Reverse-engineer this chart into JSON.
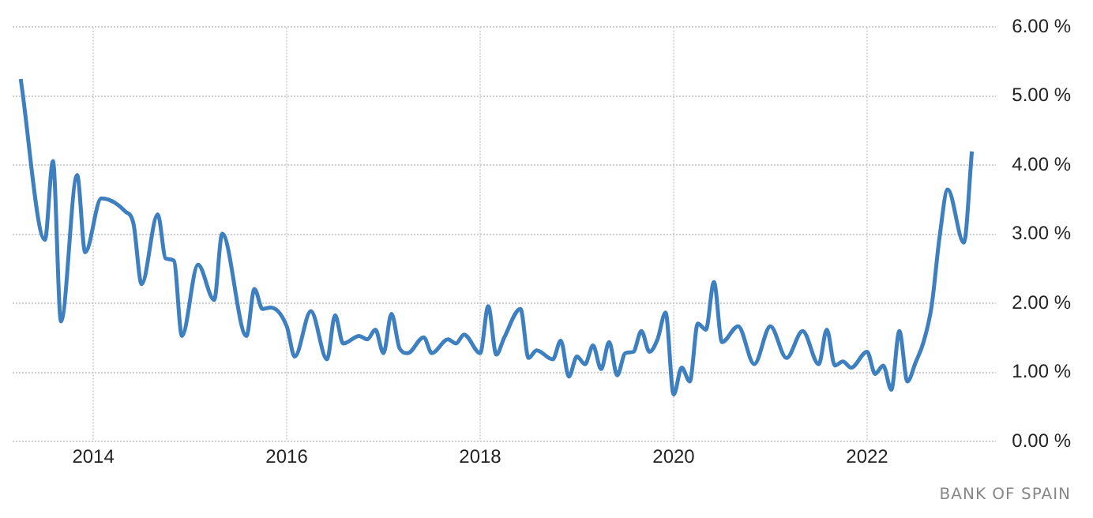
{
  "chart_data": {
    "type": "line",
    "x": [
      "2013-04",
      "2013-07",
      "2013-08",
      "2013-09",
      "2013-11",
      "2013-12",
      "2014-02",
      "2014-05",
      "2014-06",
      "2014-07",
      "2014-09",
      "2014-10",
      "2014-11",
      "2014-12",
      "2015-02",
      "2015-04",
      "2015-05",
      "2015-08",
      "2015-09",
      "2015-10",
      "2015-11",
      "2016-01",
      "2016-02",
      "2016-04",
      "2016-06",
      "2016-07",
      "2016-08",
      "2016-10",
      "2016-11",
      "2016-12",
      "2017-01",
      "2017-02",
      "2017-03",
      "2017-04",
      "2017-06",
      "2017-07",
      "2017-09",
      "2017-10",
      "2017-11",
      "2018-01",
      "2018-02",
      "2018-03",
      "2018-04",
      "2018-06",
      "2018-07",
      "2018-08",
      "2018-10",
      "2018-11",
      "2018-12",
      "2019-01",
      "2019-02",
      "2019-03",
      "2019-04",
      "2019-05",
      "2019-06",
      "2019-07",
      "2019-08",
      "2019-09",
      "2019-10",
      "2019-11",
      "2019-12",
      "2020-01",
      "2020-02",
      "2020-03",
      "2020-04",
      "2020-05",
      "2020-06",
      "2020-07",
      "2020-09",
      "2020-11",
      "2021-01",
      "2021-03",
      "2021-05",
      "2021-07",
      "2021-08",
      "2021-09",
      "2021-10",
      "2021-11",
      "2022-01",
      "2022-02",
      "2022-03",
      "2022-04",
      "2022-05",
      "2022-06",
      "2022-07",
      "2022-08",
      "2022-09",
      "2022-10",
      "2022-11",
      "2023-01",
      "2023-02"
    ],
    "series": [
      {
        "color": "#3d7fbf",
        "values": [
          5.25,
          2.92,
          4.06,
          1.74,
          3.86,
          2.74,
          3.52,
          3.33,
          3.15,
          2.28,
          3.29,
          2.65,
          2.62,
          1.53,
          2.56,
          2.05,
          3.01,
          1.53,
          2.21,
          1.92,
          1.94,
          1.67,
          1.23,
          1.89,
          1.19,
          1.83,
          1.42,
          1.53,
          1.48,
          1.62,
          1.28,
          1.85,
          1.35,
          1.28,
          1.51,
          1.28,
          1.48,
          1.42,
          1.55,
          1.28,
          1.96,
          1.26,
          1.51,
          1.92,
          1.21,
          1.32,
          1.19,
          1.46,
          0.94,
          1.23,
          1.12,
          1.39,
          1.05,
          1.44,
          0.96,
          1.28,
          1.3,
          1.6,
          1.3,
          1.48,
          1.87,
          0.68,
          1.07,
          0.87,
          1.71,
          1.62,
          2.31,
          1.44,
          1.67,
          1.12,
          1.67,
          1.21,
          1.6,
          1.12,
          1.62,
          1.1,
          1.16,
          1.07,
          1.3,
          0.98,
          1.1,
          0.75,
          1.6,
          0.87,
          1.14,
          1.44,
          1.96,
          2.97,
          3.65,
          2.88,
          4.2
        ]
      }
    ],
    "xlim": [
      "2013-03",
      "2023-05"
    ],
    "xticks": [
      "2014",
      "2016",
      "2018",
      "2020",
      "2022"
    ],
    "ylim": [
      0,
      6
    ],
    "yticks": [
      {
        "value": 0,
        "label": "0.00 %"
      },
      {
        "value": 1,
        "label": "1.00 %"
      },
      {
        "value": 2,
        "label": "2.00 %"
      },
      {
        "value": 3,
        "label": "3.00 %"
      },
      {
        "value": 4,
        "label": "4.00 %"
      },
      {
        "value": 5,
        "label": "5.00 %"
      },
      {
        "value": 6,
        "label": "6.00 %"
      }
    ],
    "grid": true,
    "line_style": "solid",
    "marker": "none",
    "annotations": [
      "BANK OF SPAIN"
    ]
  }
}
